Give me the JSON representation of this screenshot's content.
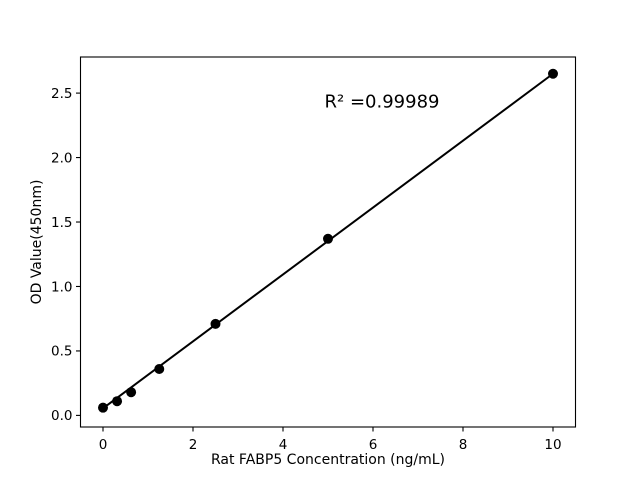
{
  "chart_data": {
    "type": "scatter",
    "title": "",
    "xlabel": "Rat FABP5 Concentration (ng/mL)",
    "ylabel": "OD Value(450nm)",
    "x": [
      0,
      0.3125,
      0.625,
      1.25,
      2.5,
      5,
      10
    ],
    "y": [
      0.06,
      0.11,
      0.18,
      0.36,
      0.71,
      1.37,
      2.65
    ],
    "fit_line": {
      "x": [
        0,
        10
      ],
      "y": [
        0.055,
        2.65
      ]
    },
    "annotation": {
      "text": "R² =0.99989",
      "x": 6.19,
      "y": 2.42
    },
    "xlim": [
      -0.5,
      10.5
    ],
    "ylim": [
      -0.09,
      2.78
    ],
    "xticks": {
      "values": [
        0,
        2,
        4,
        6,
        8,
        10
      ],
      "labels": [
        "0",
        "2",
        "4",
        "6",
        "8",
        "10"
      ]
    },
    "yticks": {
      "values": [
        0,
        0.5,
        1,
        1.5,
        2,
        2.5
      ],
      "labels": [
        "0.0",
        "0.5",
        "1.0",
        "1.5",
        "2.0",
        "2.5"
      ]
    },
    "grid": false,
    "legend": null,
    "marker_color": "#000000",
    "line_color": "#000000",
    "background": "#ffffff"
  }
}
